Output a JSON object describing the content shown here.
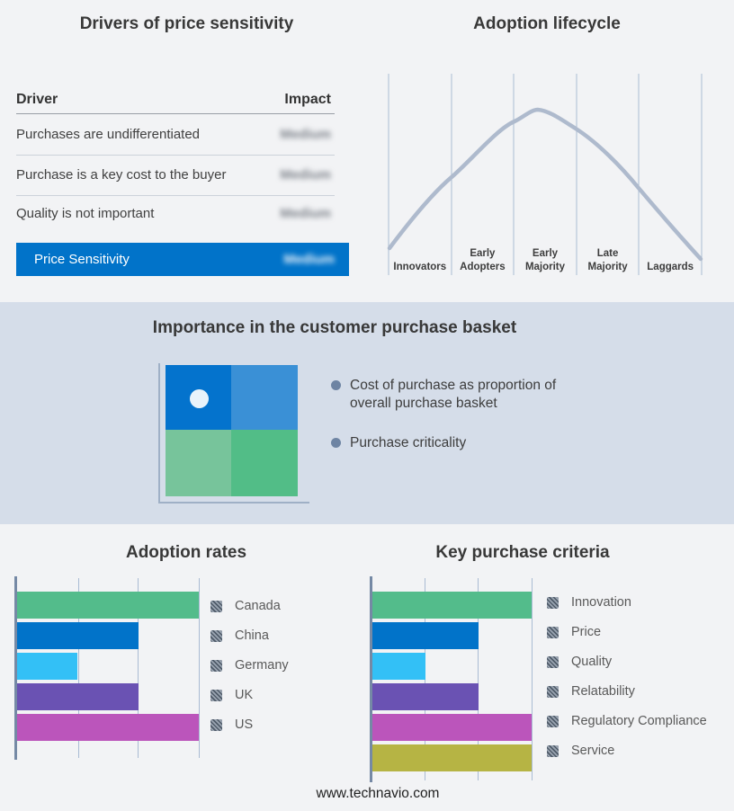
{
  "colors": {
    "page_bg": "#f2f3f5",
    "band_bg": "#d5dde9",
    "accent_blue": "#0173c9",
    "curve": "#aebacd",
    "stage_gridline": "#a9bcd4",
    "chart_gridline": "#a9bbd3",
    "chart_axis": "#7589a5",
    "bullet": "#6e84a3",
    "quadrant_top_left": "#0473cd",
    "quadrant_top_right": "#3a90d6",
    "quadrant_bottom_left": "#77c49b",
    "quadrant_bottom_right": "#52bd87"
  },
  "drivers_panel": {
    "title": "Drivers of price sensitivity",
    "columns": [
      "Driver",
      "Impact"
    ],
    "rows": [
      {
        "driver": "Purchases are undifferentiated",
        "impact": "Medium",
        "impact_obscured": true
      },
      {
        "driver": "Purchase is a key cost to the buyer",
        "impact": "Medium",
        "impact_obscured": true
      },
      {
        "driver": "Quality is not important",
        "impact": "Medium",
        "impact_obscured": true
      }
    ],
    "highlight": {
      "driver": "Price Sensitivity",
      "impact": "Medium",
      "impact_obscured": true
    }
  },
  "basket_panel": {
    "title": "Importance in the customer purchase basket",
    "bullets": [
      "Cost of purchase as proportion of overall purchase basket",
      "Purchase criticality"
    ],
    "quadrant": "2x2 matrix, marker dot in top-left (high) quadrant"
  },
  "footer": {
    "url": "www.technavio.com"
  },
  "chart_data": [
    {
      "id": "adoption_lifecycle",
      "type": "line",
      "title": "Adoption lifecycle",
      "x_stages": [
        "Innovators",
        "Early Adopters",
        "Early Majority",
        "Late Majority",
        "Laggards"
      ],
      "shape": "bell curve rising from Innovators, peaking early in Early Majority, falling through Laggards",
      "grid": "vertical stage-boundary lines, no y-axis values shown"
    },
    {
      "id": "adoption_rates",
      "type": "bar",
      "title": "Adoption rates",
      "orientation": "horizontal",
      "categories": [
        "Canada",
        "China",
        "Germany",
        "UK",
        "US"
      ],
      "values": [
        3,
        2,
        1,
        2,
        3
      ],
      "xlim": [
        0,
        3
      ],
      "grid": "vertical gridlines at 1, 2, 3; no tick labels shown",
      "bar_colors": [
        "#53bc8b",
        "#0173c9",
        "#33c0f6",
        "#6a52b3",
        "#bb55bb"
      ],
      "legend_position": "right"
    },
    {
      "id": "key_purchase_criteria",
      "type": "bar",
      "title": "Key purchase criteria",
      "orientation": "horizontal",
      "categories": [
        "Innovation",
        "Price",
        "Quality",
        "Relatability",
        "Regulatory Compliance",
        "Service"
      ],
      "values": [
        3,
        2,
        1,
        2,
        3,
        3
      ],
      "xlim": [
        0,
        3
      ],
      "grid": "vertical gridlines at 1, 2, 3; no tick labels shown",
      "bar_colors": [
        "#53bc8b",
        "#0173c9",
        "#33c0f6",
        "#6a52b3",
        "#bb55bb",
        "#b6b444"
      ],
      "legend_position": "right"
    }
  ]
}
